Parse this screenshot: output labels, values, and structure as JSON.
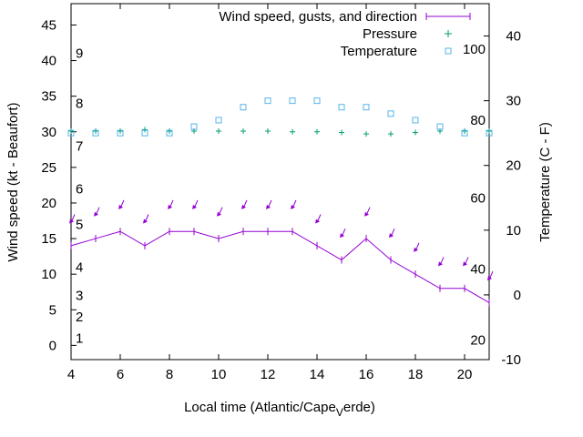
{
  "chart_data": {
    "type": "line",
    "xlabel": "Local time (Atlantic/Cape",
    "xlabel_sub": "V",
    "xlabel_tail": "erde)",
    "ylabel": "Wind speed (kt - Beaufort)",
    "y2label": "Temperature (C - F)",
    "xlim": [
      4,
      21
    ],
    "ylim": [
      -2,
      48
    ],
    "y2lim": [
      -10,
      45
    ],
    "x_ticks": [
      4,
      6,
      8,
      10,
      12,
      14,
      16,
      18,
      20
    ],
    "y_ticks": [
      0,
      5,
      10,
      15,
      20,
      25,
      30,
      35,
      40,
      45
    ],
    "y2_ticks": [
      -10,
      0,
      10,
      20,
      30,
      40
    ],
    "beaufort": [
      {
        "label": "1",
        "y": 1
      },
      {
        "label": "2",
        "y": 4
      },
      {
        "label": "3",
        "y": 7
      },
      {
        "label": "4",
        "y": 11
      },
      {
        "label": "5",
        "y": 17
      },
      {
        "label": "6",
        "y": 22
      },
      {
        "label": "7",
        "y": 28
      },
      {
        "label": "8",
        "y": 34
      },
      {
        "label": "9",
        "y": 41
      }
    ],
    "fahrenheit": [
      {
        "label": "20",
        "y2": -7
      },
      {
        "label": "40",
        "y2": 4
      },
      {
        "label": "60",
        "y2": 15
      },
      {
        "label": "80",
        "y2": 27
      },
      {
        "label": "100",
        "y2": 38
      }
    ],
    "legend": {
      "position": "top-right",
      "wind": "Wind speed, gusts, and direction",
      "pressure": "Pressure",
      "temperature": "Temperature"
    },
    "x": [
      4,
      5,
      6,
      7,
      8,
      9,
      10,
      11,
      12,
      13,
      14,
      15,
      16,
      17,
      18,
      19,
      20,
      21
    ],
    "series": [
      {
        "name": "Wind speed, gusts, and direction",
        "axis": "y",
        "color": "#9400d3",
        "values": [
          14,
          15,
          16,
          14,
          16,
          16,
          15,
          16,
          16,
          16,
          14,
          12,
          15,
          12,
          10,
          8,
          8,
          6
        ]
      },
      {
        "name": "Pressure",
        "axis": "y",
        "color": "#009e73",
        "values": [
          30.1,
          30.1,
          30.1,
          30.3,
          30.1,
          30.1,
          30.1,
          30.1,
          30.1,
          30.0,
          30.0,
          29.9,
          29.7,
          29.7,
          29.9,
          30.1,
          30.1,
          30.1
        ]
      },
      {
        "name": "Temperature",
        "axis": "y2",
        "color": "#56b4e9",
        "values": [
          25,
          25,
          25,
          25,
          25,
          26,
          27,
          29,
          30,
          30,
          30,
          29,
          29,
          28,
          27,
          26,
          25,
          25
        ]
      }
    ],
    "direction_arrows": {
      "color": "#9400d3",
      "y": [
        17.5,
        18.5,
        19.5,
        17.5,
        19.5,
        19.5,
        18.5,
        19.5,
        19.5,
        19.5,
        17.5,
        15.5,
        18.5,
        15.5,
        13.5,
        11.5,
        11.5,
        9.5
      ]
    }
  }
}
